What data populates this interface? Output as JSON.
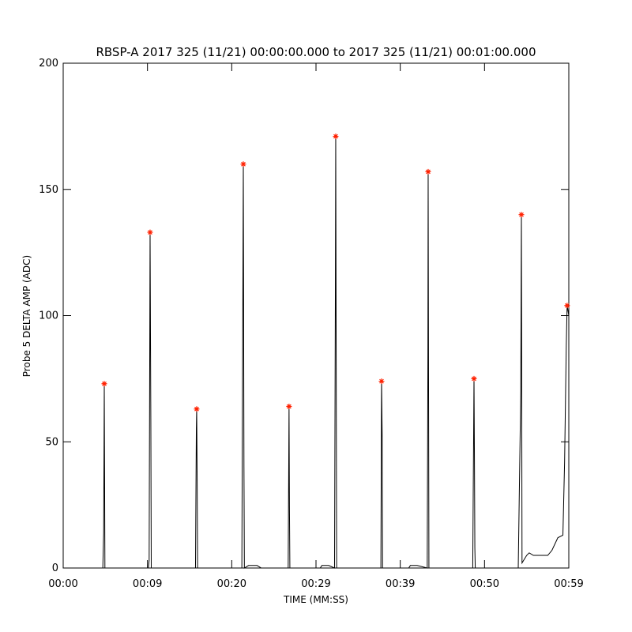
{
  "chart_data": {
    "type": "line",
    "title": "RBSP-A 2017 325 (11/21) 00:00:00.000 to 2017 325 (11/21) 00:01:00.000",
    "x_label": "TIME (MM:SS)",
    "y_label": "Probe 5 DELTA AMP (ADC)",
    "xlim": [
      0,
      60
    ],
    "ylim": [
      0,
      200
    ],
    "xticks": [
      {
        "value": 0,
        "label": "00:00"
      },
      {
        "value": 10,
        "label": "00:09"
      },
      {
        "value": 20,
        "label": "00:20"
      },
      {
        "value": 30,
        "label": "00:29"
      },
      {
        "value": 40,
        "label": "00:39"
      },
      {
        "value": 50,
        "label": "00:50"
      },
      {
        "value": 60,
        "label": "00:59"
      }
    ],
    "yticks": [
      0,
      50,
      100,
      150,
      200
    ],
    "series": [
      {
        "color": "#000000",
        "marker": "line",
        "x": [
          0,
          4.7,
          4.8,
          4.85,
          4.875,
          4.95,
          10.1,
          10.2,
          10.31,
          10.4,
          10.45,
          15.7,
          15.8,
          15.84,
          15.9,
          15.95,
          21.2,
          21.3,
          21.375,
          21.45,
          21.5,
          22.0,
          23.0,
          23.5,
          26.7,
          26.8,
          26.85,
          26.9,
          30.5,
          30.7,
          31.5,
          32.2,
          32.3,
          32.34,
          32.45,
          37.7,
          37.78,
          37.85,
          37.9,
          41.0,
          41.2,
          42.0,
          43.2,
          43.28,
          43.31,
          43.4,
          48.6,
          48.75,
          48.8,
          48.85,
          48.9,
          54.0,
          54.3,
          54.375,
          54.45,
          55.0,
          55.3,
          55.8,
          56.5,
          57.5,
          58.0,
          58.7,
          59.3,
          59.5,
          59.7,
          59.8,
          60
        ],
        "values": [
          0,
          0,
          14,
          51,
          73,
          0,
          0,
          3,
          133,
          58,
          0,
          0,
          55,
          63,
          33,
          0,
          0,
          90,
          160,
          40,
          0,
          1,
          1,
          0,
          0,
          64,
          24,
          0,
          0,
          1,
          1,
          0,
          110,
          171,
          0,
          0,
          74,
          53,
          0,
          0,
          1,
          1,
          0,
          86,
          157,
          0,
          0,
          75,
          45,
          8,
          0,
          0,
          70,
          140,
          2,
          5,
          6,
          5,
          5,
          5,
          7,
          12,
          13,
          42,
          88,
          104,
          100
        ]
      },
      {
        "color": "#ff2000",
        "marker": "asterisk",
        "x": [
          4.875,
          10.31,
          15.84,
          21.375,
          26.8,
          32.34,
          37.78,
          43.31,
          48.75,
          54.375,
          59.8
        ],
        "values": [
          73,
          133,
          63,
          160,
          64,
          171,
          74,
          157,
          75,
          140,
          104
        ]
      }
    ]
  }
}
